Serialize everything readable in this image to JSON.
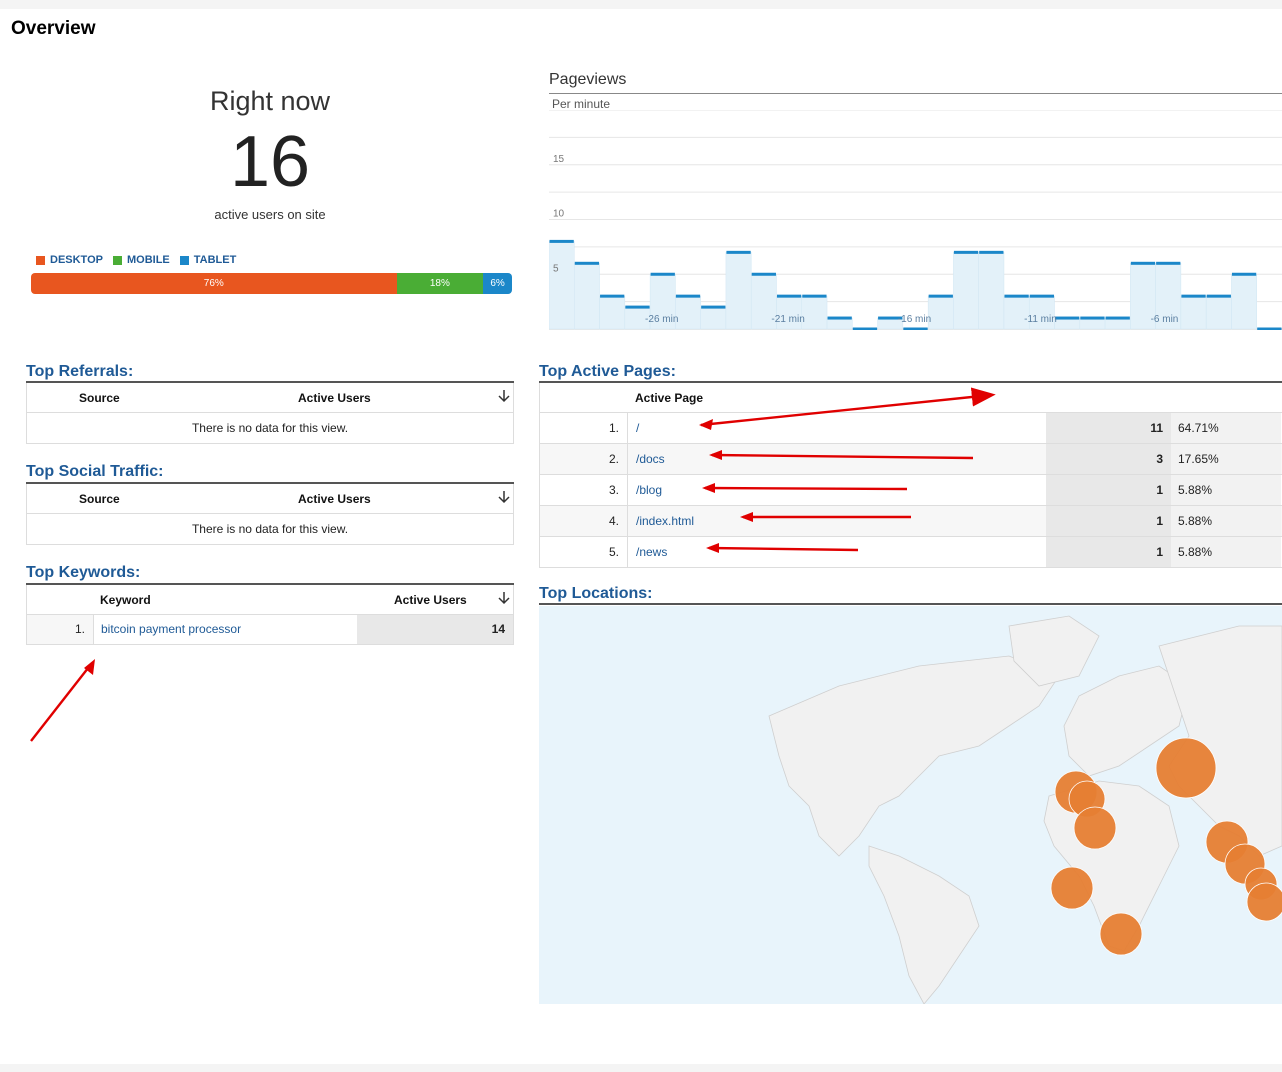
{
  "page_title": "Overview",
  "right_now": {
    "title": "Right now",
    "count": "16",
    "subtitle": "active users on site"
  },
  "devices": {
    "legend": [
      {
        "label": "DESKTOP",
        "color": "#e8561f"
      },
      {
        "label": "MOBILE",
        "color": "#4aad35"
      },
      {
        "label": "TABLET",
        "color": "#1b87c9"
      }
    ],
    "bar": [
      {
        "label": "76%",
        "share": 0.76,
        "color": "#e8561f"
      },
      {
        "label": "18%",
        "share": 0.18,
        "color": "#4aad35"
      },
      {
        "label": "6%",
        "share": 0.06,
        "color": "#1b87c9"
      }
    ]
  },
  "pageviews": {
    "title": "Pageviews",
    "subtitle": "Per minute",
    "chart_data": {
      "type": "area",
      "y_ticks": [
        "15",
        "10",
        "5"
      ],
      "x_ticks": [
        "-26 min",
        "-21 min",
        "-16 min",
        "-11 min",
        "-6 min"
      ],
      "ylim": [
        0,
        20
      ],
      "values": [
        8,
        6,
        3,
        2,
        5,
        3,
        2,
        7,
        5,
        3,
        3,
        1,
        0,
        1,
        0,
        3,
        7,
        7,
        3,
        3,
        1,
        1,
        1,
        6,
        6,
        3,
        3,
        5,
        0
      ],
      "color": "#1b87c9"
    }
  },
  "referrals": {
    "title": "Top Referrals:",
    "col1": "Source",
    "col2": "Active Users",
    "empty": "There is no data for this view."
  },
  "social": {
    "title": "Top Social Traffic:",
    "col1": "Source",
    "col2": "Active Users",
    "empty": "There is no data for this view."
  },
  "keywords": {
    "title": "Top Keywords:",
    "col1": "Keyword",
    "col2": "Active Users",
    "rows": [
      {
        "idx": "1.",
        "keyword": "bitcoin payment processor",
        "users": "14"
      }
    ]
  },
  "active_pages": {
    "title": "Top Active Pages:",
    "col1": "Active Page",
    "rows": [
      {
        "idx": "1.",
        "page": "/",
        "users": "11",
        "pct": "64.71%"
      },
      {
        "idx": "2.",
        "page": "/docs",
        "users": "3",
        "pct": "17.65%"
      },
      {
        "idx": "3.",
        "page": "/blog",
        "users": "1",
        "pct": "5.88%"
      },
      {
        "idx": "4.",
        "page": "/index.html",
        "users": "1",
        "pct": "5.88%"
      },
      {
        "idx": "5.",
        "page": "/news",
        "users": "1",
        "pct": "5.88%"
      }
    ]
  },
  "locations": {
    "title": "Top Locations:",
    "marker_color": "#e67e33"
  }
}
